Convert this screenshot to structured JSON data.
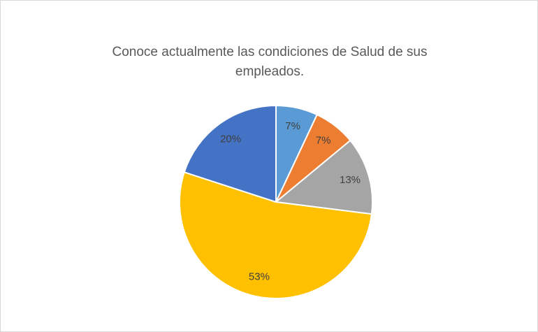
{
  "chart_data": {
    "type": "pie",
    "title": "Conoce actualmente las condiciones de Salud de sus empleados.",
    "values": [
      7,
      7,
      13,
      53,
      20
    ],
    "value_labels": [
      "7%",
      "7%",
      "13%",
      "53%",
      "20%"
    ],
    "colors": [
      "#5b9bd5",
      "#ed7d31",
      "#a5a5a5",
      "#ffc000",
      "#4472c4"
    ]
  }
}
